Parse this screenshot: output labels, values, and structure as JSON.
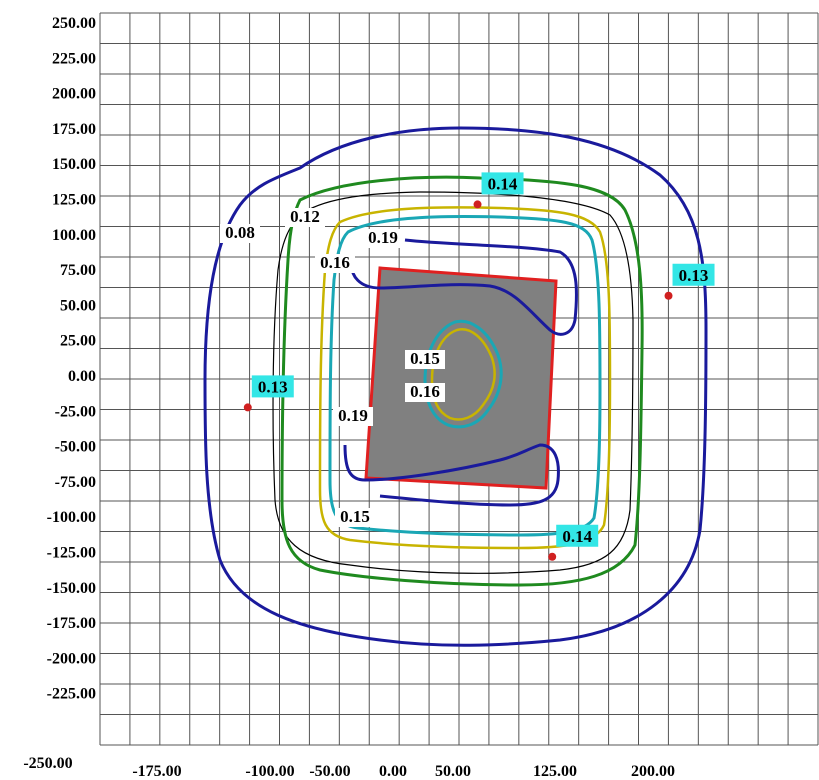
{
  "chart_data": {
    "type": "contour",
    "x_ticks": [
      "-250.00",
      "-175.00",
      "-100.00",
      "-50.00",
      "0.00",
      "50.00",
      "125.00",
      "200.00"
    ],
    "y_ticks": [
      "250.00",
      "225.00",
      "200.00",
      "175.00",
      "150.00",
      "125.00",
      "100.00",
      "75.00",
      "50.00",
      "25.00",
      "0.00",
      "-25.00",
      "-50.00",
      "-75.00",
      "-100.00",
      "-125.00",
      "-150.00",
      "-175.00",
      "-200.00",
      "-225.00"
    ],
    "xlim": [
      -250,
      250
    ],
    "ylim": [
      -250,
      250
    ],
    "grid": true,
    "colors": {
      "blue_contour": "#1a1a9c",
      "green_contour": "#1f8a1f",
      "yellow_contour": "#c8b400",
      "cyan_contour": "#1aa7b5",
      "thin_contour": "#000000",
      "plate_fill": "#808080",
      "plate_edge": "#e02020",
      "highlight_label": "#33e6e6",
      "point_marker": "#d02020"
    },
    "contours": [
      {
        "level": "0.08",
        "color": "blue"
      },
      {
        "level": "0.12",
        "color": "black"
      },
      {
        "level": "0.13",
        "color": "green"
      },
      {
        "level": "0.14",
        "color": "yellow"
      },
      {
        "level": "0.15",
        "color": "cyan"
      },
      {
        "level": "0.16",
        "color": "cyan"
      },
      {
        "level": "0.19",
        "color": "blue"
      }
    ],
    "contour_labels": [
      {
        "text": "0.08"
      },
      {
        "text": "0.12"
      },
      {
        "text": "0.16"
      },
      {
        "text": "0.19"
      },
      {
        "text": "0.15"
      },
      {
        "text": "0.16"
      },
      {
        "text": "0.19"
      },
      {
        "text": "0.15"
      }
    ],
    "measurement_points": [
      {
        "label": "0.14",
        "x": 15,
        "y": 128
      },
      {
        "label": "0.13",
        "x": 148,
        "y": 65
      },
      {
        "label": "0.13",
        "x": -145,
        "y": -12
      },
      {
        "label": "0.14",
        "x": 67,
        "y": -115
      }
    ]
  }
}
